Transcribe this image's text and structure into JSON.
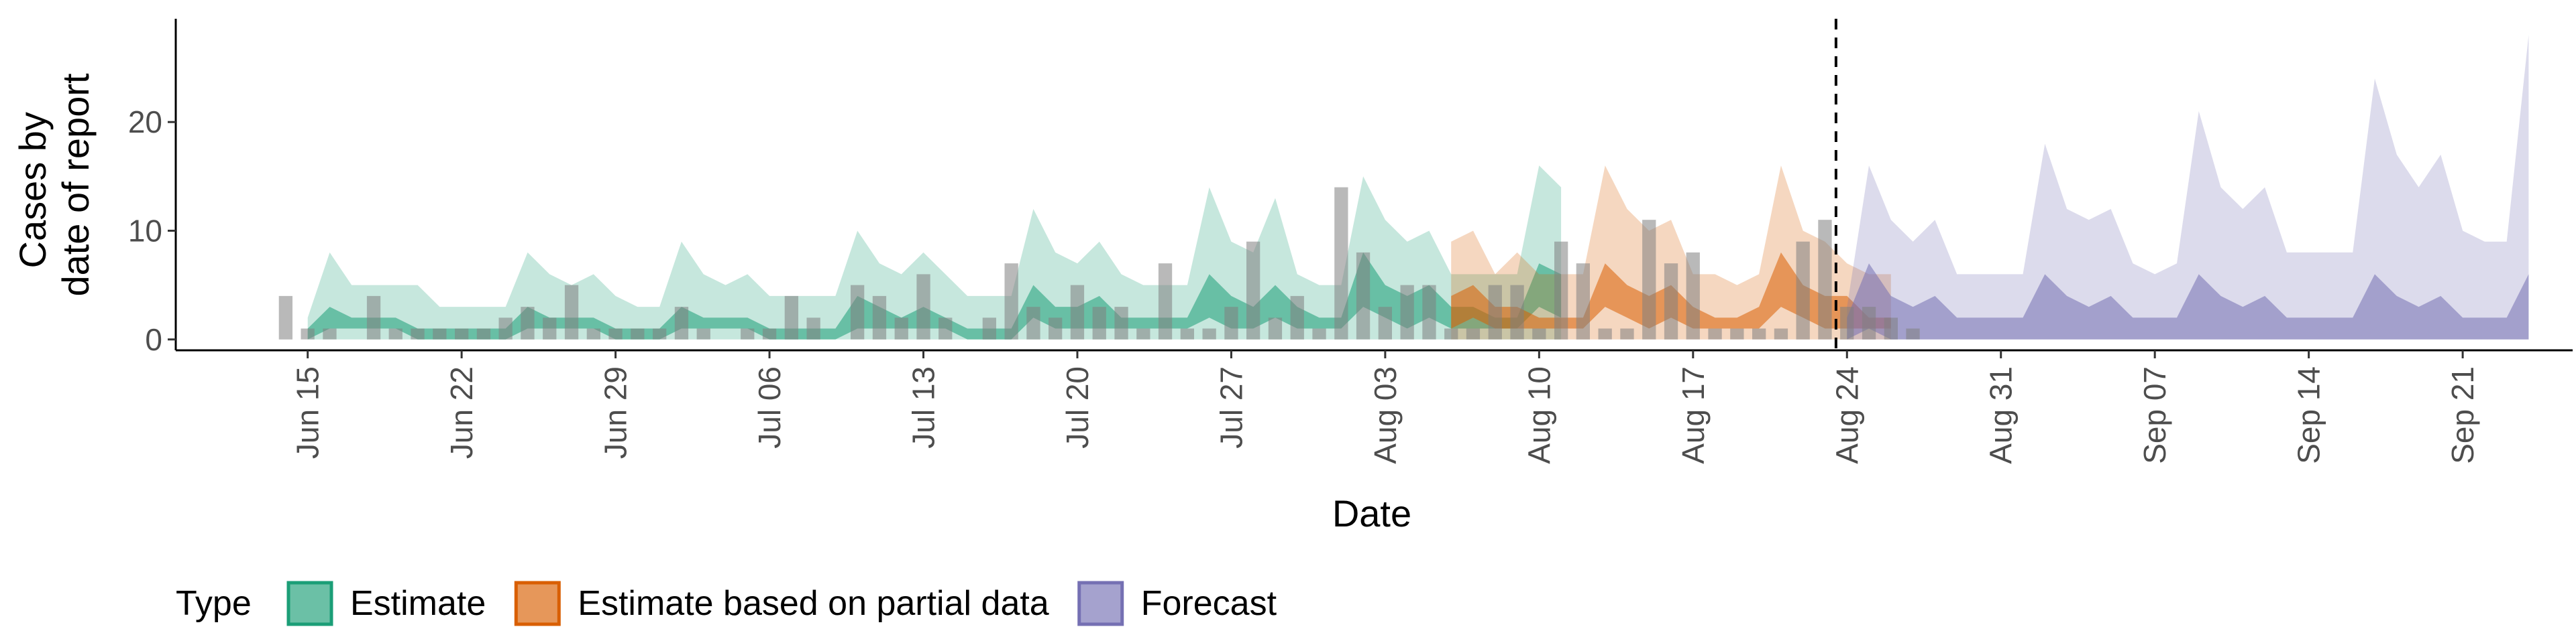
{
  "chart_data": {
    "type": "area",
    "xlabel": "Date",
    "ylabel": [
      "Cases by",
      "date of report"
    ],
    "x_tick_labels": [
      "Jun 15",
      "Jun 22",
      "Jun 29",
      "Jul 06",
      "Jul 13",
      "Jul 20",
      "Jul 27",
      "Aug 03",
      "Aug 10",
      "Aug 17",
      "Aug 24",
      "Aug 31",
      "Sep 07",
      "Sep 14",
      "Sep 21"
    ],
    "x_tick_dates": [
      "2020-06-15",
      "2020-06-22",
      "2020-06-29",
      "2020-07-06",
      "2020-07-13",
      "2020-07-20",
      "2020-07-27",
      "2020-08-03",
      "2020-08-10",
      "2020-08-17",
      "2020-08-24",
      "2020-08-31",
      "2020-09-07",
      "2020-09-14",
      "2020-09-21"
    ],
    "x_range": [
      "2020-06-09",
      "2020-09-26"
    ],
    "y_ticks": [
      0,
      10,
      20
    ],
    "ylim": [
      -1,
      29.5
    ],
    "forecast_date": "2020-08-23",
    "legend": {
      "title": "Type",
      "position": "bottom-left",
      "items": [
        {
          "label": "Estimate",
          "color": "#1b9e77"
        },
        {
          "label": "Estimate based on partial data",
          "color": "#d95f02"
        },
        {
          "label": "Forecast",
          "color": "#7570b3"
        }
      ]
    },
    "colors": {
      "bars": "#808080",
      "estimate": "#1b9e77",
      "partial": "#d95f02",
      "forecast": "#7570b3",
      "forecast_line": "#000000"
    },
    "reported_cases": {
      "start_date": "2020-06-14",
      "values": [
        4,
        1,
        1,
        0,
        4,
        1,
        1,
        1,
        1,
        1,
        2,
        3,
        2,
        5,
        1,
        1,
        1,
        1,
        3,
        1,
        0,
        1,
        1,
        4,
        2,
        0,
        5,
        4,
        2,
        6,
        2,
        0,
        2,
        7,
        3,
        2,
        5,
        3,
        3,
        1,
        7,
        1,
        1,
        3,
        9,
        2,
        4,
        1,
        14,
        8,
        3,
        5,
        5,
        1,
        1,
        5,
        5,
        1,
        9,
        7,
        1,
        1,
        11,
        7,
        8,
        1,
        1,
        1,
        1,
        9,
        11,
        3,
        3,
        2,
        1
      ]
    },
    "series": [
      {
        "name": "Estimate",
        "start_date": "2020-06-15",
        "upper_outer": [
          2,
          8,
          5,
          5,
          5,
          5,
          3,
          3,
          3,
          3,
          8,
          6,
          5,
          6,
          4,
          3,
          3,
          9,
          6,
          5,
          6,
          4,
          4,
          4,
          4,
          10,
          7,
          6,
          8,
          6,
          4,
          4,
          4,
          12,
          8,
          7,
          9,
          6,
          5,
          5,
          5,
          14,
          9,
          8,
          13,
          6,
          5,
          5,
          15,
          11,
          9,
          10,
          6,
          6,
          6,
          6,
          16,
          14
        ],
        "lower_outer": [
          0,
          0,
          0,
          0,
          0,
          0,
          0,
          0,
          0,
          0,
          0,
          0,
          0,
          0,
          0,
          0,
          0,
          0,
          0,
          0,
          0,
          0,
          0,
          0,
          0,
          0,
          0,
          0,
          0,
          0,
          0,
          0,
          0,
          0,
          0,
          0,
          0,
          0,
          0,
          0,
          0,
          0,
          0,
          0,
          0,
          0,
          0,
          0,
          0,
          0,
          0,
          0,
          0,
          0,
          0,
          0,
          0,
          0
        ],
        "upper_inner": [
          1,
          3,
          2,
          2,
          2,
          1,
          1,
          1,
          1,
          1,
          3,
          2,
          2,
          2,
          1,
          1,
          1,
          3,
          2,
          2,
          2,
          1,
          1,
          1,
          1,
          4,
          3,
          2,
          3,
          2,
          1,
          1,
          1,
          5,
          3,
          3,
          4,
          2,
          2,
          2,
          2,
          6,
          4,
          3,
          5,
          3,
          2,
          2,
          8,
          5,
          4,
          5,
          3,
          3,
          2,
          2,
          7,
          6
        ],
        "lower_inner": [
          0,
          1,
          1,
          1,
          1,
          0,
          0,
          0,
          0,
          0,
          1,
          1,
          1,
          1,
          0,
          0,
          0,
          1,
          1,
          1,
          1,
          0,
          0,
          0,
          0,
          1,
          1,
          1,
          1,
          1,
          0,
          0,
          0,
          2,
          1,
          1,
          1,
          1,
          1,
          1,
          1,
          2,
          1,
          1,
          2,
          1,
          1,
          1,
          3,
          2,
          1,
          2,
          1,
          1,
          1,
          1,
          3,
          2
        ]
      },
      {
        "name": "Estimate based on partial data",
        "start_date": "2020-08-06",
        "upper_outer": [
          9,
          10,
          6,
          8,
          6,
          6,
          6,
          16,
          12,
          10,
          11,
          6,
          6,
          5,
          6,
          16,
          10,
          9,
          7,
          6,
          6
        ],
        "lower_outer": [
          0,
          0,
          0,
          0,
          0,
          0,
          0,
          0,
          0,
          0,
          0,
          0,
          0,
          0,
          0,
          0,
          0,
          0,
          0,
          0,
          0
        ],
        "upper_inner": [
          4,
          5,
          3,
          3,
          2,
          2,
          2,
          7,
          5,
          4,
          5,
          3,
          2,
          2,
          3,
          8,
          5,
          4,
          4,
          2,
          2
        ],
        "lower_inner": [
          1,
          2,
          1,
          1,
          1,
          1,
          1,
          3,
          2,
          1,
          2,
          1,
          1,
          1,
          1,
          3,
          2,
          1,
          1,
          1,
          1
        ]
      },
      {
        "name": "Forecast",
        "start_date": "2020-08-24",
        "upper_outer": [
          3,
          16,
          11,
          9,
          11,
          6,
          6,
          6,
          6,
          18,
          12,
          11,
          12,
          7,
          6,
          7,
          21,
          14,
          12,
          14,
          8,
          8,
          8,
          8,
          24,
          17,
          14,
          17,
          10,
          9,
          9,
          28
        ],
        "lower_outer": [
          0,
          0,
          0,
          0,
          0,
          0,
          0,
          0,
          0,
          0,
          0,
          0,
          0,
          0,
          0,
          0,
          0,
          0,
          0,
          0,
          0,
          0,
          0,
          0,
          0,
          0,
          0,
          0,
          0,
          0,
          0,
          0
        ],
        "upper_inner": [
          2,
          7,
          4,
          3,
          4,
          2,
          2,
          2,
          2,
          6,
          4,
          3,
          4,
          2,
          2,
          2,
          6,
          4,
          3,
          4,
          2,
          2,
          2,
          2,
          6,
          4,
          3,
          4,
          2,
          2,
          2,
          6
        ],
        "lower_inner": [
          0,
          1,
          0,
          0,
          0,
          0,
          0,
          0,
          0,
          0,
          0,
          0,
          0,
          0,
          0,
          0,
          0,
          0,
          0,
          0,
          0,
          0,
          0,
          0,
          0,
          0,
          0,
          0,
          0,
          0,
          0,
          0
        ]
      }
    ]
  }
}
